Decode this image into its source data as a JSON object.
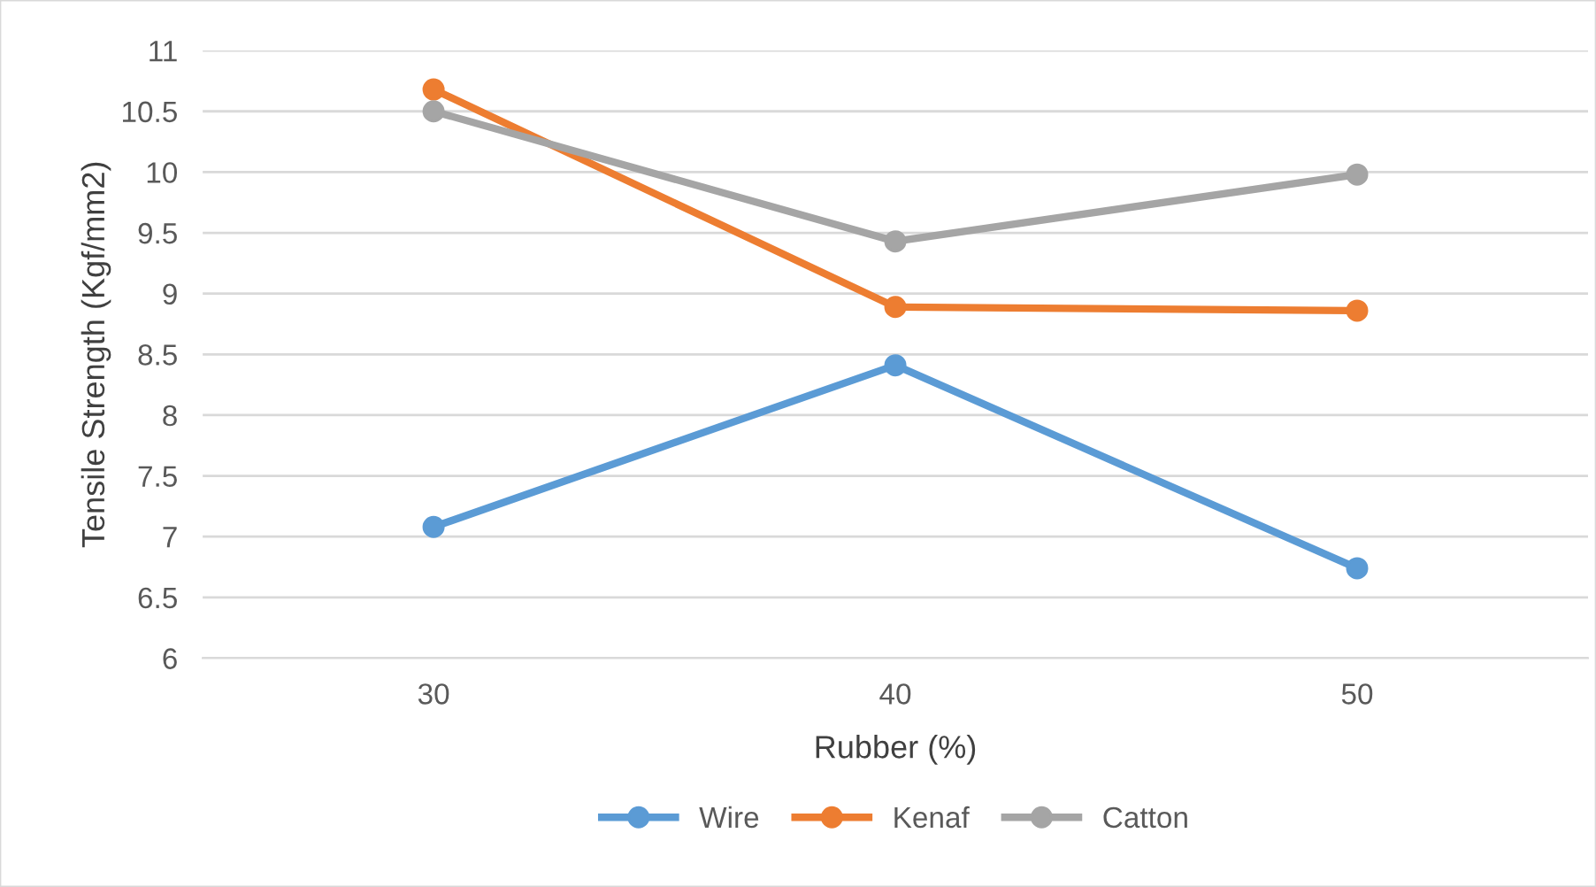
{
  "chart_data": {
    "type": "line",
    "xlabel": "Rubber (%)",
    "ylabel": "Tensile Strength (Kgf/mm2)",
    "categories": [
      "30",
      "40",
      "50"
    ],
    "series": [
      {
        "name": "Wire",
        "color": "#5b9bd5",
        "values": [
          7.08,
          8.41,
          6.74
        ]
      },
      {
        "name": "Kenaf",
        "color": "#ed7d31",
        "values": [
          10.68,
          8.89,
          8.86
        ]
      },
      {
        "name": "Catton",
        "color": "#a5a5a5",
        "values": [
          10.5,
          9.43,
          9.98
        ]
      }
    ],
    "ylim": [
      6,
      11
    ],
    "yticks": [
      6,
      6.5,
      7,
      7.5,
      8,
      8.5,
      9,
      9.5,
      10,
      10.5,
      11
    ],
    "grid": "y",
    "legend": "bottom",
    "marker": "circle",
    "line_style": "solid"
  }
}
